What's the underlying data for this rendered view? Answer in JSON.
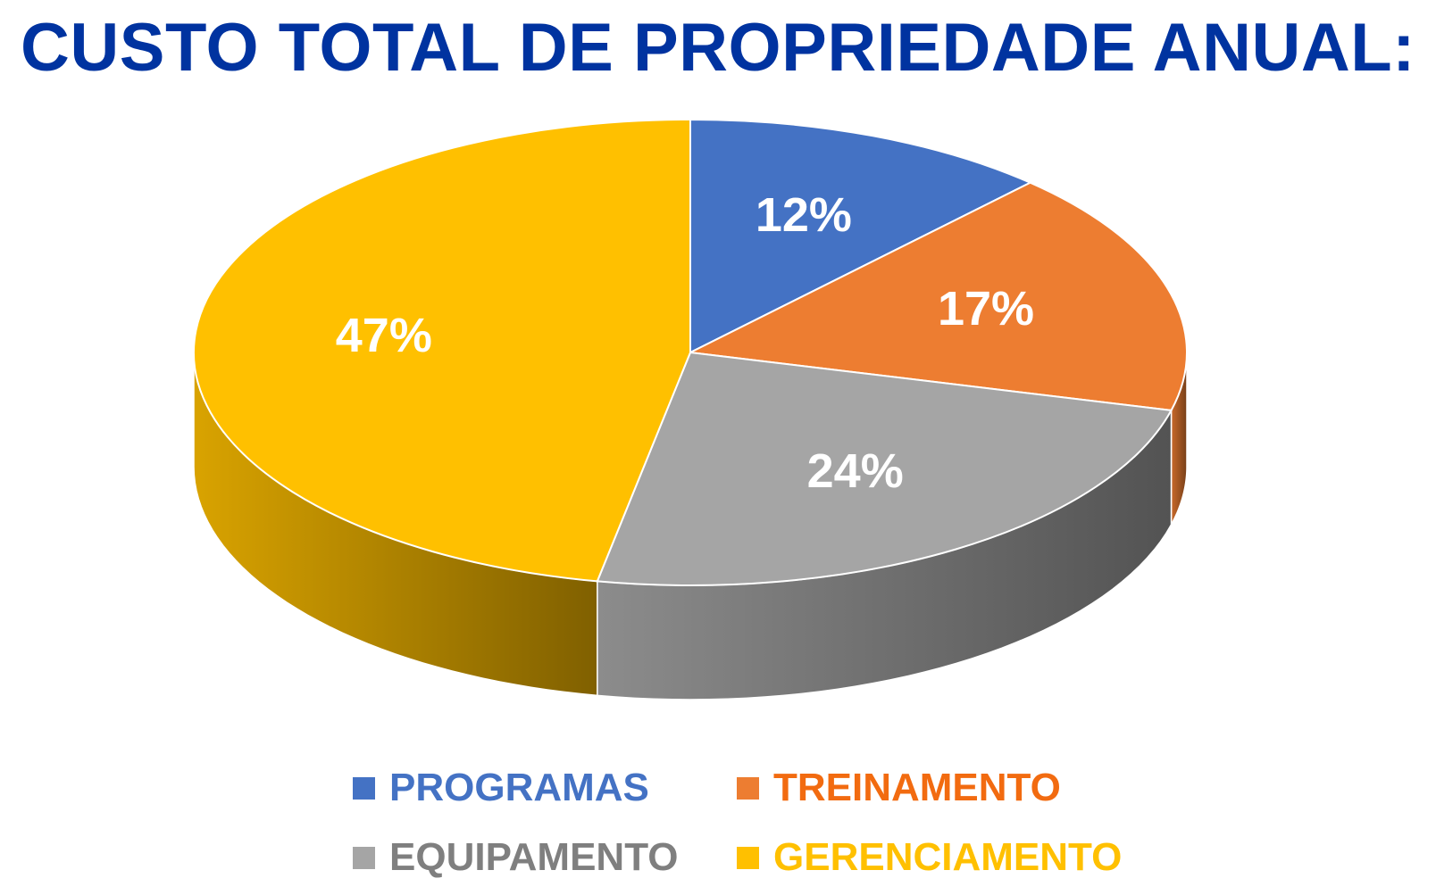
{
  "chart_data": {
    "type": "pie",
    "title": "CUSTO TOTAL DE PROPRIEDADE ANUAL:",
    "categories": [
      "PROGRAMAS",
      "TREINAMENTO",
      "EQUIPAMENTO",
      "GERENCIAMENTO"
    ],
    "values": [
      12,
      17,
      24,
      47
    ],
    "data_labels": [
      "12%",
      "17%",
      "24%",
      "47%"
    ],
    "colors": [
      "#4472c4",
      "#ed7d31",
      "#a5a5a5",
      "#ffc000"
    ],
    "legend_text_colors": [
      "#4472c4",
      "#f26b10",
      "#7f7f7f",
      "#ffc000"
    ],
    "legend_position": "bottom",
    "style": "3d"
  }
}
